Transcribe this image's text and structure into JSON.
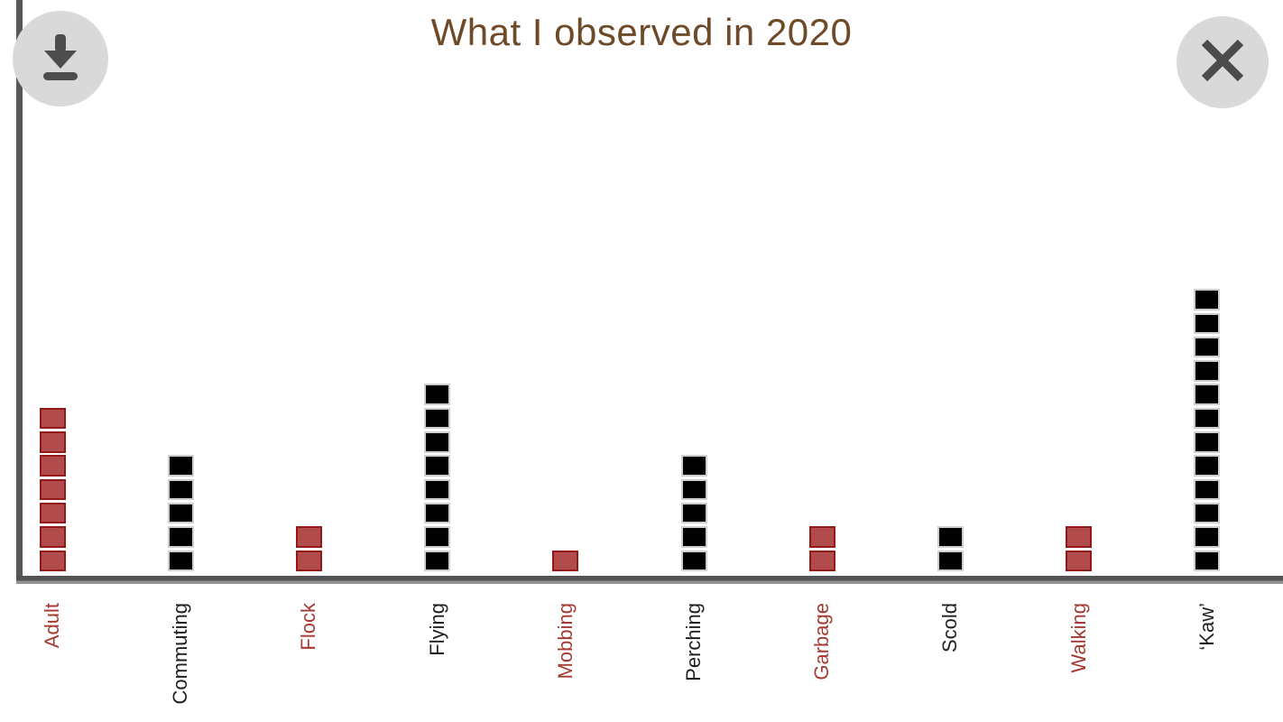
{
  "header": {
    "title": "What I observed in 2020"
  },
  "toolbar": {
    "download_icon": "download-arrow-into-tray",
    "close_icon": "x-cross"
  },
  "chart_data": {
    "type": "bar",
    "subtype": "waffle-column-pictogram",
    "title": "What I observed in 2020",
    "xlabel": "",
    "ylabel": "",
    "grid": false,
    "legend": "none",
    "y_axis_ticks": "none",
    "categories": [
      "Adult",
      "Commuting",
      "Flock",
      "Flying",
      "Mobbing",
      "Perching",
      "Garbage",
      "Scold",
      "Walking",
      "‘Kaw’"
    ],
    "values": [
      7,
      5,
      2,
      8,
      1,
      5,
      2,
      2,
      2,
      12
    ],
    "category_color_group": [
      "red",
      "black",
      "red",
      "black",
      "red",
      "black",
      "red",
      "black",
      "red",
      "black"
    ],
    "colors": {
      "red_square_fill": "#b24c4c",
      "red_square_border": "#941a1a",
      "black_square_fill": "#000000",
      "black_square_border": "#cfcfcf",
      "red_label": "#a53a32",
      "black_label": "#1f1f1f",
      "title": "#6e4a28",
      "axis_line": "#58585a",
      "button_background": "#d9d9d9",
      "button_glyph": "#4d4d4d"
    }
  }
}
